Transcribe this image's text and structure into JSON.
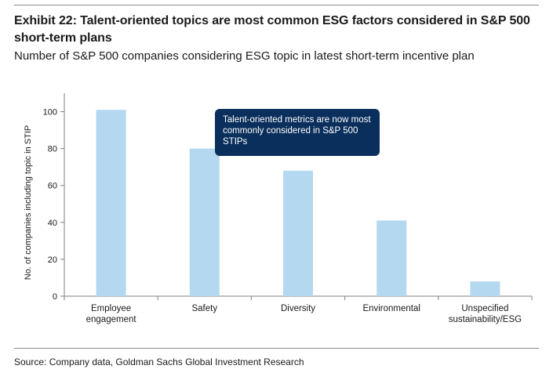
{
  "header": {
    "title": "Exhibit 22: Talent-oriented topics are most common ESG factors considered in S&P 500 short-term plans",
    "subtitle": "Number of S&P 500 companies considering ESG topic in latest short-term incentive plan"
  },
  "footer": {
    "source": "Source: Company data, Goldman Sachs Global Investment Research"
  },
  "callout": {
    "text": "Talent-oriented metrics are now most commonly considered in S&P 500 STIPs"
  },
  "colors": {
    "bar": "#b4d8f0",
    "callout_bg": "#0a2f5c",
    "axis": "#7f7f7f"
  },
  "chart_data": {
    "type": "bar",
    "title": "",
    "xlabel": "",
    "ylabel": "No. of companies including topic in STIP",
    "categories": [
      [
        "Employee",
        "engagement"
      ],
      [
        "Safety"
      ],
      [
        "Diversity"
      ],
      [
        "Environmental"
      ],
      [
        "Unspecified",
        "sustainability/ESG"
      ]
    ],
    "values": [
      101,
      80,
      68,
      41,
      8
    ],
    "ylim": [
      0,
      110
    ],
    "yticks": [
      0,
      20,
      40,
      60,
      80,
      100
    ],
    "grid": false,
    "legend": "none"
  }
}
